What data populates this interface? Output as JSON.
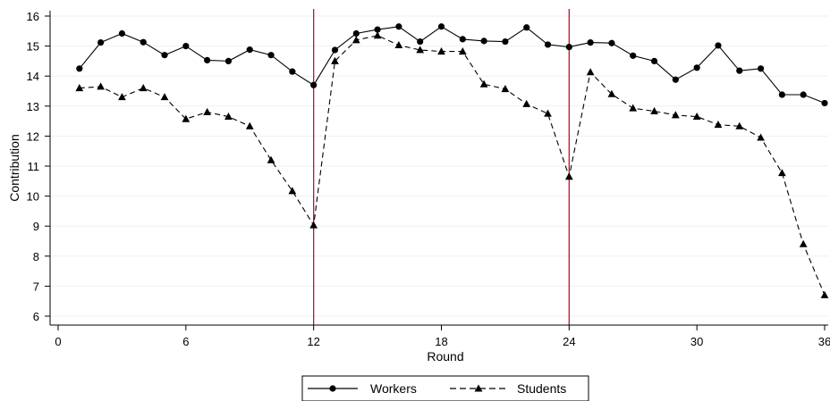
{
  "chart_data": {
    "type": "line",
    "title": "",
    "xlabel": "Round",
    "ylabel": "Contribution",
    "xlim": [
      0,
      36
    ],
    "ylim": [
      6,
      16
    ],
    "x_ticks": [
      0,
      6,
      12,
      18,
      24,
      30,
      36
    ],
    "y_ticks": [
      6,
      7,
      8,
      9,
      10,
      11,
      12,
      13,
      14,
      15,
      16
    ],
    "grid": "horizontal",
    "legend_position": "bottom",
    "vertical_lines": [
      12,
      24
    ],
    "vertical_line_color": "#c8102e",
    "x": [
      1,
      2,
      3,
      4,
      5,
      6,
      7,
      8,
      9,
      10,
      11,
      12,
      13,
      14,
      15,
      16,
      17,
      18,
      19,
      20,
      21,
      22,
      23,
      24,
      25,
      26,
      27,
      28,
      29,
      30,
      31,
      32,
      33,
      34,
      35,
      36
    ],
    "series": [
      {
        "name": "Workers",
        "marker": "circle",
        "line": "solid",
        "values": [
          14.25,
          15.12,
          15.42,
          15.13,
          14.7,
          15.0,
          14.53,
          14.5,
          14.88,
          14.7,
          14.15,
          13.7,
          14.87,
          15.42,
          15.55,
          15.65,
          15.15,
          15.65,
          15.23,
          15.17,
          15.15,
          15.62,
          15.05,
          14.97,
          15.12,
          15.1,
          14.68,
          14.5,
          13.88,
          14.28,
          15.02,
          14.18,
          14.25,
          13.38,
          13.38,
          13.1
        ]
      },
      {
        "name": "Students",
        "marker": "triangle",
        "line": "dashed",
        "values": [
          13.6,
          13.65,
          13.3,
          13.6,
          13.3,
          12.57,
          12.8,
          12.65,
          12.33,
          11.2,
          10.17,
          9.03,
          14.5,
          15.2,
          15.35,
          15.03,
          14.87,
          14.82,
          14.82,
          13.73,
          13.57,
          13.07,
          12.75,
          10.65,
          14.13,
          13.4,
          12.93,
          12.83,
          12.7,
          12.65,
          12.38,
          12.33,
          11.95,
          10.77,
          8.4,
          6.7
        ]
      }
    ]
  }
}
